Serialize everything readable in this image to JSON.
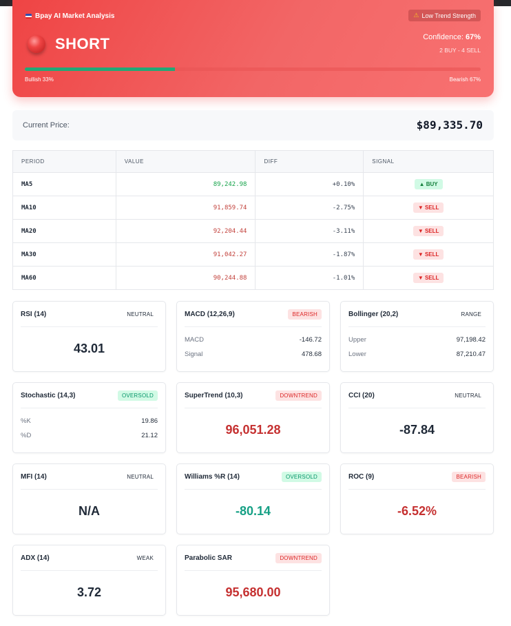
{
  "header": {
    "title": "Bpay AI Market Analysis",
    "trend_badge": "Low Trend Strength",
    "signal": "SHORT",
    "confidence_label": "Confidence:",
    "confidence_value": "67%",
    "votes": "2 BUY - 4 SELL",
    "bullish_label": "Bullish 33%",
    "bearish_label": "Bearish 67%",
    "bullish_fraction": 0.33,
    "bearish_fraction": 0.67,
    "colors": {
      "bull": "#22a876",
      "bear": "#ef4444"
    }
  },
  "price": {
    "label": "Current Price:",
    "value": "$89,335.70"
  },
  "ma_table": {
    "headers": [
      "PERIOD",
      "VALUE",
      "DIFF",
      "SIGNAL"
    ],
    "rows": [
      {
        "period": "MA5",
        "value": "89,242.98",
        "diff": "+0.10%",
        "signal": "▲ BUY",
        "dir": "up"
      },
      {
        "period": "MA10",
        "value": "91,859.74",
        "diff": "-2.75%",
        "signal": "▼ SELL",
        "dir": "down"
      },
      {
        "period": "MA20",
        "value": "92,204.44",
        "diff": "-3.11%",
        "signal": "▼ SELL",
        "dir": "down"
      },
      {
        "period": "MA30",
        "value": "91,042.27",
        "diff": "-1.87%",
        "signal": "▼ SELL",
        "dir": "down"
      },
      {
        "period": "MA60",
        "value": "90,244.88",
        "diff": "-1.01%",
        "signal": "▼ SELL",
        "dir": "down"
      }
    ]
  },
  "indicators": {
    "rsi": {
      "title": "RSI (14)",
      "badge": "NEUTRAL",
      "value": "43.01"
    },
    "macd": {
      "title": "MACD (12,26,9)",
      "badge": "BEARISH",
      "macd_label": "MACD",
      "macd_value": "-146.72",
      "signal_label": "Signal",
      "signal_value": "478.68"
    },
    "bollinger": {
      "title": "Bollinger (20,2)",
      "badge": "RANGE",
      "upper_label": "Upper",
      "upper_value": "97,198.42",
      "lower_label": "Lower",
      "lower_value": "87,210.47"
    },
    "stochastic": {
      "title": "Stochastic (14,3)",
      "badge": "OVERSOLD",
      "k_label": "%K",
      "k_value": "19.86",
      "d_label": "%D",
      "d_value": "21.12"
    },
    "supertrend": {
      "title": "SuperTrend (10,3)",
      "badge": "DOWNTREND",
      "value": "96,051.28"
    },
    "cci": {
      "title": "CCI (20)",
      "badge": "NEUTRAL",
      "value": "-87.84"
    },
    "mfi": {
      "title": "MFI (14)",
      "badge": "NEUTRAL",
      "value": "N/A"
    },
    "williams": {
      "title": "Williams %R (14)",
      "badge": "OVERSOLD",
      "value": "-80.14"
    },
    "roc": {
      "title": "ROC (9)",
      "badge": "BEARISH",
      "value": "-6.52%"
    },
    "adx": {
      "title": "ADX (14)",
      "badge": "WEAK",
      "value": "3.72"
    },
    "psar": {
      "title": "Parabolic SAR",
      "badge": "DOWNTREND",
      "value": "95,680.00"
    }
  }
}
